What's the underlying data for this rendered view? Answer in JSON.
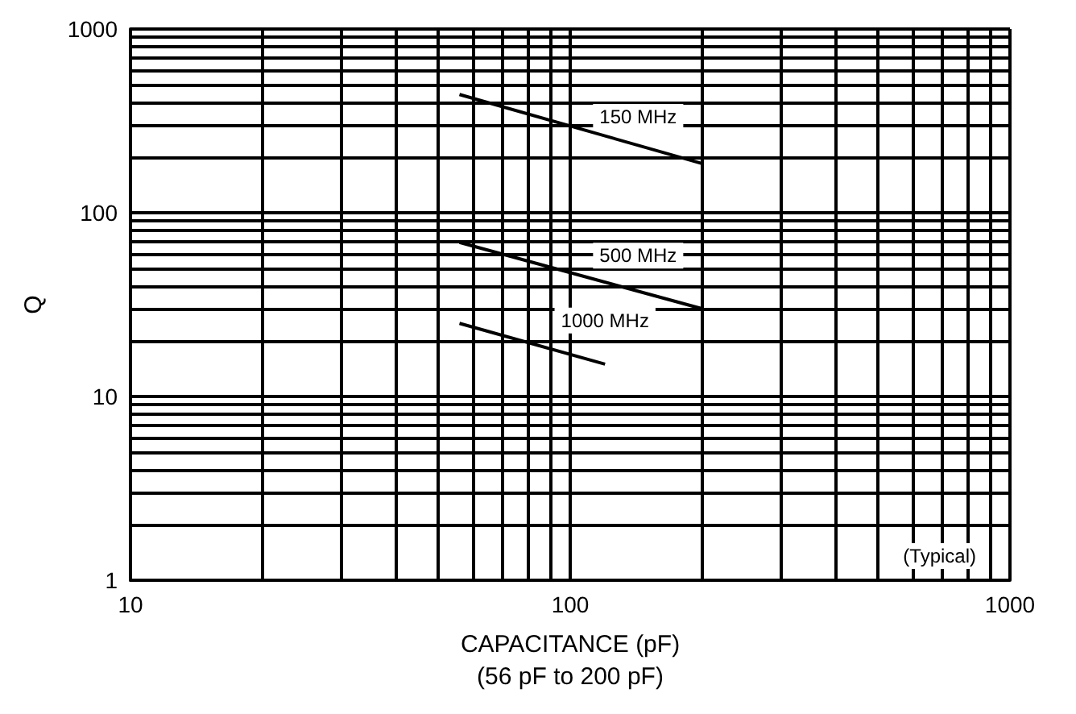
{
  "chart_data": {
    "type": "line",
    "xlabel": "CAPACITANCE (pF)\n(56 pF to 200 pF)",
    "ylabel": "Q",
    "log": "xy",
    "grid": true,
    "marker": "none",
    "line_style": "solid",
    "legend": false,
    "xlim": [
      10,
      1000
    ],
    "xticks": [
      10,
      {
        "value": 20,
        "label": null
      },
      {
        "value": 30,
        "label": null
      },
      {
        "value": 40,
        "label": null
      },
      {
        "value": 50,
        "label": null
      },
      {
        "value": 60,
        "label": null
      },
      {
        "value": 70,
        "label": null
      },
      {
        "value": 80,
        "label": null
      },
      {
        "value": 90,
        "label": null
      },
      100,
      {
        "value": 200,
        "label": null
      },
      {
        "value": 300,
        "label": null
      },
      {
        "value": 400,
        "label": null
      },
      {
        "value": 500,
        "label": null
      },
      {
        "value": 600,
        "label": null
      },
      {
        "value": 700,
        "label": null
      },
      {
        "value": 800,
        "label": null
      },
      {
        "value": 900,
        "label": null
      },
      1000
    ],
    "ylim": [
      1,
      1000
    ],
    "yticks": [
      1,
      {
        "value": 2,
        "label": null
      },
      {
        "value": 3,
        "label": null
      },
      {
        "value": 4,
        "label": null
      },
      {
        "value": 5,
        "label": null
      },
      {
        "value": 6,
        "label": null
      },
      {
        "value": 7,
        "label": null
      },
      {
        "value": 8,
        "label": null
      },
      {
        "value": 9,
        "label": null
      },
      10,
      {
        "value": 20,
        "label": null
      },
      {
        "value": 30,
        "label": null
      },
      {
        "value": 40,
        "label": null
      },
      {
        "value": 50,
        "label": null
      },
      {
        "value": 60,
        "label": null
      },
      {
        "value": 70,
        "label": null
      },
      {
        "value": 80,
        "label": null
      },
      {
        "value": 90,
        "label": null
      },
      100,
      {
        "value": 200,
        "label": null
      },
      {
        "value": 300,
        "label": null
      },
      {
        "value": 400,
        "label": null
      },
      {
        "value": 500,
        "label": null
      },
      {
        "value": 600,
        "label": null
      },
      {
        "value": 700,
        "label": null
      },
      {
        "value": 800,
        "label": null
      },
      {
        "value": 900,
        "label": null
      },
      1000
    ],
    "series": [
      {
        "name": "150 MHz",
        "color": "#000000",
        "x": [
          56,
          200
        ],
        "values": [
          440,
          185
        ]
      },
      {
        "name": "500 MHz",
        "color": "#000000",
        "x": [
          56,
          200
        ],
        "values": [
          69,
          30
        ]
      },
      {
        "name": "1000 MHz",
        "color": "#000000",
        "x": [
          56,
          120
        ],
        "values": [
          25,
          15
        ]
      }
    ],
    "annotations": [
      "(Typical)"
    ]
  }
}
